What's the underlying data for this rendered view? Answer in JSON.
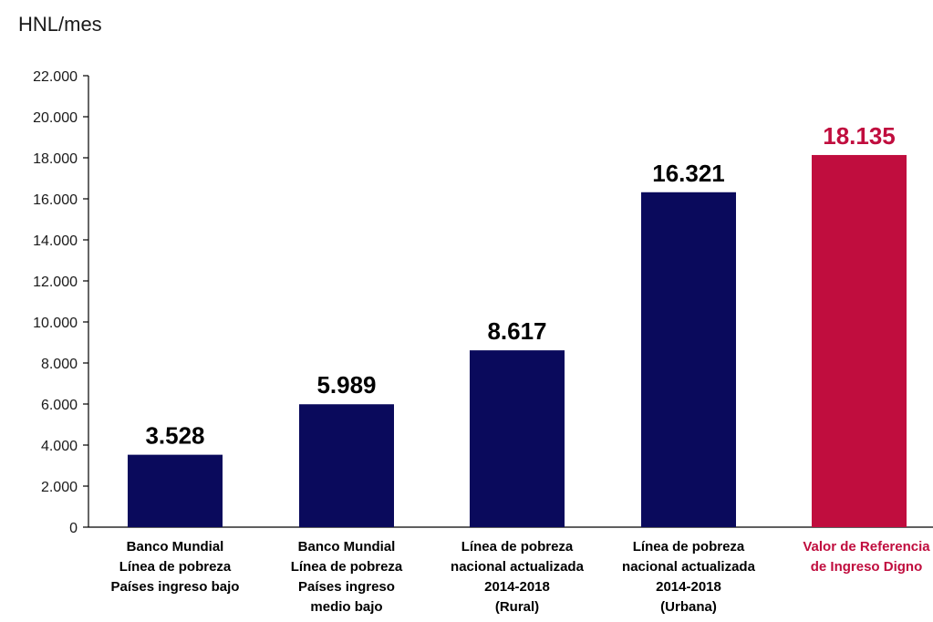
{
  "chart_data": {
    "type": "bar",
    "ylabel": "HNL/mes",
    "ylim": [
      0,
      22000
    ],
    "yticks": [
      0,
      2000,
      4000,
      6000,
      8000,
      10000,
      12000,
      14000,
      16000,
      18000,
      20000,
      22000
    ],
    "ytick_labels": [
      "0",
      "2.000",
      "4.000",
      "6.000",
      "8.000",
      "10.000",
      "12.000",
      "14.000",
      "16.000",
      "18.000",
      "20.000",
      "22.000"
    ],
    "grid": false,
    "categories": [
      [
        "Banco Mundial",
        "Línea de pobreza",
        "Países ingreso bajo"
      ],
      [
        "Banco Mundial",
        "Línea de pobreza",
        "Países ingreso",
        "medio bajo"
      ],
      [
        "Línea de pobreza",
        "nacional actualizada",
        "2014-2018",
        "(Rural)"
      ],
      [
        "Línea de pobreza",
        "nacional actualizada",
        "2014-2018",
        "(Urbana)"
      ],
      [
        "Valor de Referencia",
        "de Ingreso Digno"
      ]
    ],
    "values": [
      3528,
      5989,
      8617,
      16321,
      18135
    ],
    "value_labels": [
      "3.528",
      "5.989",
      "8.617",
      "16.321",
      "18.135"
    ],
    "colors": [
      "#0a0a5c",
      "#0a0a5c",
      "#0a0a5c",
      "#0a0a5c",
      "#c00d3e"
    ],
    "highlight_index": 4
  }
}
